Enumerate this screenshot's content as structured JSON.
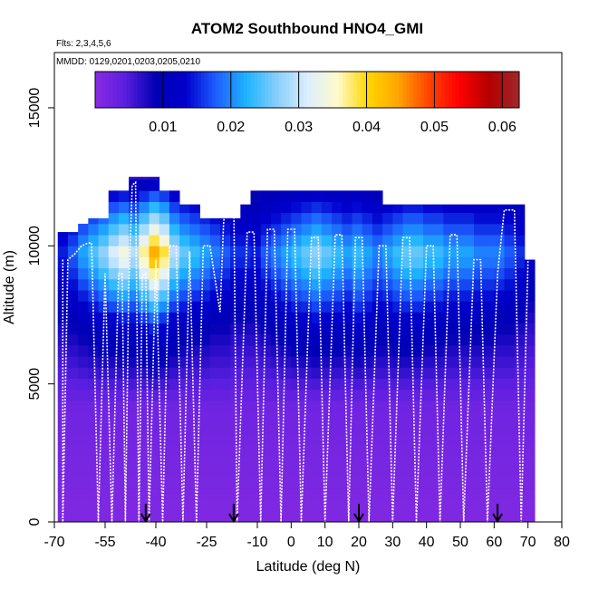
{
  "chart_data": {
    "type": "heatmap",
    "title": "ATOM2 Southbound HNO4_GMI",
    "subtitle_flights": "Flts: 2,3,4,5,6",
    "subtitle_dates": "MMDD: 0129,0201,0203,0205,0210",
    "xlabel": "Latitude (deg N)",
    "ylabel": "Altitude (m)",
    "xlim": [
      -70,
      80
    ],
    "ylim": [
      0,
      17000
    ],
    "x_ticks": [
      -70,
      -55,
      -40,
      -25,
      -10,
      0,
      10,
      20,
      30,
      40,
      50,
      60,
      70,
      80
    ],
    "x_tick_labels": [
      "-70",
      "-55",
      "-40",
      "-25",
      "-10",
      "0",
      "10",
      "20",
      "30",
      "40",
      "50",
      "60",
      "70",
      "80"
    ],
    "y_ticks": [
      0,
      5000,
      10000,
      15000
    ],
    "y_tick_labels": [
      "0",
      "5000",
      "10000",
      "15000"
    ],
    "colorbar": {
      "min": 0.0,
      "max": 0.0625,
      "ticks": [
        0.01,
        0.02,
        0.03,
        0.04,
        0.05,
        0.06
      ],
      "tick_labels": [
        "0.01",
        "0.02",
        "0.03",
        "0.04",
        "0.05",
        "0.06"
      ],
      "colors": [
        "#8a2be2",
        "#5a1ee0",
        "#0000b4",
        "#0000cd",
        "#1e60ff",
        "#1eb4ff",
        "#87cefa",
        "#dceeff",
        "#fffacd",
        "#ffd700",
        "#ffa500",
        "#ff4500",
        "#ff0000",
        "#b40000",
        "#a0282a"
      ]
    },
    "arrow_latitudes": [
      -43,
      -17,
      20,
      61
    ],
    "lat_columns": [
      {
        "lat": -67.5,
        "top": 10500,
        "mid": 0.008,
        "high": 0.015
      },
      {
        "lat": -64.5,
        "top": 10500,
        "mid": 0.009,
        "high": 0.018
      },
      {
        "lat": -61.5,
        "top": 10800,
        "mid": 0.01,
        "high": 0.022
      },
      {
        "lat": -58.5,
        "top": 11000,
        "mid": 0.011,
        "high": 0.025
      },
      {
        "lat": -55.5,
        "top": 11000,
        "mid": 0.012,
        "high": 0.028
      },
      {
        "lat": -52.5,
        "top": 12000,
        "mid": 0.012,
        "high": 0.032
      },
      {
        "lat": -49.5,
        "top": 12000,
        "mid": 0.013,
        "high": 0.035
      },
      {
        "lat": -46.5,
        "top": 12500,
        "mid": 0.013,
        "high": 0.03
      },
      {
        "lat": -43.5,
        "top": 12500,
        "mid": 0.014,
        "high": 0.038
      },
      {
        "lat": -40.5,
        "top": 12500,
        "mid": 0.016,
        "high": 0.045
      },
      {
        "lat": -37.5,
        "top": 12000,
        "mid": 0.014,
        "high": 0.04
      },
      {
        "lat": -34.5,
        "top": 12000,
        "mid": 0.012,
        "high": 0.03
      },
      {
        "lat": -31.5,
        "top": 11500,
        "mid": 0.011,
        "high": 0.026
      },
      {
        "lat": -28.5,
        "top": 11500,
        "mid": 0.01,
        "high": 0.024
      },
      {
        "lat": -25.5,
        "top": 11000,
        "mid": 0.01,
        "high": 0.022
      },
      {
        "lat": -22.5,
        "top": 11000,
        "mid": 0.009,
        "high": 0.02
      },
      {
        "lat": -19.5,
        "top": 11000,
        "mid": 0.009,
        "high": 0.018
      },
      {
        "lat": -16.5,
        "top": 11000,
        "mid": 0.008,
        "high": 0.016
      },
      {
        "lat": -13.5,
        "top": 11500,
        "mid": 0.008,
        "high": 0.016
      },
      {
        "lat": -10.5,
        "top": 12000,
        "mid": 0.008,
        "high": 0.015
      },
      {
        "lat": -7.5,
        "top": 12000,
        "mid": 0.009,
        "high": 0.018
      },
      {
        "lat": -4.5,
        "top": 12000,
        "mid": 0.01,
        "high": 0.02
      },
      {
        "lat": -1.5,
        "top": 12000,
        "mid": 0.011,
        "high": 0.022
      },
      {
        "lat": 1.5,
        "top": 12000,
        "mid": 0.012,
        "high": 0.024
      },
      {
        "lat": 4.5,
        "top": 12000,
        "mid": 0.012,
        "high": 0.026
      },
      {
        "lat": 7.5,
        "top": 12000,
        "mid": 0.013,
        "high": 0.028
      },
      {
        "lat": 10.5,
        "top": 12000,
        "mid": 0.012,
        "high": 0.026
      },
      {
        "lat": 13.5,
        "top": 12000,
        "mid": 0.012,
        "high": 0.024
      },
      {
        "lat": 16.5,
        "top": 12000,
        "mid": 0.011,
        "high": 0.022
      },
      {
        "lat": 19.5,
        "top": 12000,
        "mid": 0.013,
        "high": 0.024
      },
      {
        "lat": 22.5,
        "top": 12000,
        "mid": 0.012,
        "high": 0.022
      },
      {
        "lat": 25.5,
        "top": 12000,
        "mid": 0.011,
        "high": 0.02
      },
      {
        "lat": 28.5,
        "top": 11500,
        "mid": 0.011,
        "high": 0.022
      },
      {
        "lat": 31.5,
        "top": 11500,
        "mid": 0.012,
        "high": 0.024
      },
      {
        "lat": 34.5,
        "top": 11500,
        "mid": 0.012,
        "high": 0.026
      },
      {
        "lat": 37.5,
        "top": 11500,
        "mid": 0.012,
        "high": 0.026
      },
      {
        "lat": 40.5,
        "top": 11500,
        "mid": 0.011,
        "high": 0.024
      },
      {
        "lat": 43.5,
        "top": 11500,
        "mid": 0.011,
        "high": 0.024
      },
      {
        "lat": 46.5,
        "top": 11500,
        "mid": 0.01,
        "high": 0.022
      },
      {
        "lat": 49.5,
        "top": 11500,
        "mid": 0.01,
        "high": 0.022
      },
      {
        "lat": 52.5,
        "top": 11500,
        "mid": 0.01,
        "high": 0.022
      },
      {
        "lat": 55.5,
        "top": 11500,
        "mid": 0.01,
        "high": 0.02
      },
      {
        "lat": 58.5,
        "top": 11500,
        "mid": 0.01,
        "high": 0.02
      },
      {
        "lat": 61.5,
        "top": 11500,
        "mid": 0.009,
        "high": 0.02
      },
      {
        "lat": 64.5,
        "top": 11500,
        "mid": 0.009,
        "high": 0.018
      },
      {
        "lat": 67.5,
        "top": 11500,
        "mid": 0.008,
        "high": 0.016
      },
      {
        "lat": 70.5,
        "top": 9500,
        "mid": 0.007,
        "high": 0.012
      }
    ],
    "flight_track": [
      [
        -67.5,
        9500
      ],
      [
        -67.5,
        0
      ],
      [
        -66,
        9500
      ],
      [
        -64,
        9700
      ],
      [
        -62,
        10000
      ],
      [
        -60,
        10100
      ],
      [
        -59,
        10100
      ],
      [
        -57,
        0
      ],
      [
        -55,
        9000
      ],
      [
        -53,
        0
      ],
      [
        -51,
        9000
      ],
      [
        -50,
        9000
      ],
      [
        -49,
        0
      ],
      [
        -48,
        8500
      ],
      [
        -47,
        12200
      ],
      [
        -46,
        12300
      ],
      [
        -45,
        0
      ],
      [
        -44,
        8900
      ],
      [
        -43,
        9000
      ],
      [
        -42,
        0
      ],
      [
        -40,
        9500
      ],
      [
        -38,
        0
      ],
      [
        -36,
        10000
      ],
      [
        -34,
        10000
      ],
      [
        -32,
        0
      ],
      [
        -30,
        9800
      ],
      [
        -28,
        0
      ],
      [
        -26,
        10000
      ],
      [
        -24,
        10000
      ],
      [
        -21,
        7600
      ],
      [
        -20,
        10800
      ],
      [
        -19,
        12000
      ],
      [
        -17,
        12000
      ],
      [
        -16,
        0
      ],
      [
        -13,
        10500
      ],
      [
        -11,
        10500
      ],
      [
        -9,
        0
      ],
      [
        -7,
        10600
      ],
      [
        -5,
        10600
      ],
      [
        -3,
        0
      ],
      [
        -1,
        10600
      ],
      [
        1,
        10600
      ],
      [
        3,
        0
      ],
      [
        6,
        10300
      ],
      [
        8,
        10300
      ],
      [
        10,
        0
      ],
      [
        13,
        10400
      ],
      [
        15,
        10400
      ],
      [
        17,
        0
      ],
      [
        19,
        10300
      ],
      [
        21,
        10300
      ],
      [
        23,
        0
      ],
      [
        26,
        10000
      ],
      [
        28,
        10000
      ],
      [
        30,
        0
      ],
      [
        33,
        10300
      ],
      [
        35,
        10300
      ],
      [
        37,
        0
      ],
      [
        40,
        10000
      ],
      [
        42,
        10000
      ],
      [
        44,
        0
      ],
      [
        47,
        10400
      ],
      [
        49,
        10400
      ],
      [
        51,
        0
      ],
      [
        54,
        9500
      ],
      [
        56,
        9500
      ],
      [
        58,
        0
      ],
      [
        61,
        9000
      ],
      [
        63,
        11300
      ],
      [
        66,
        11300
      ],
      [
        68,
        0
      ],
      [
        70,
        9500
      ]
    ]
  }
}
